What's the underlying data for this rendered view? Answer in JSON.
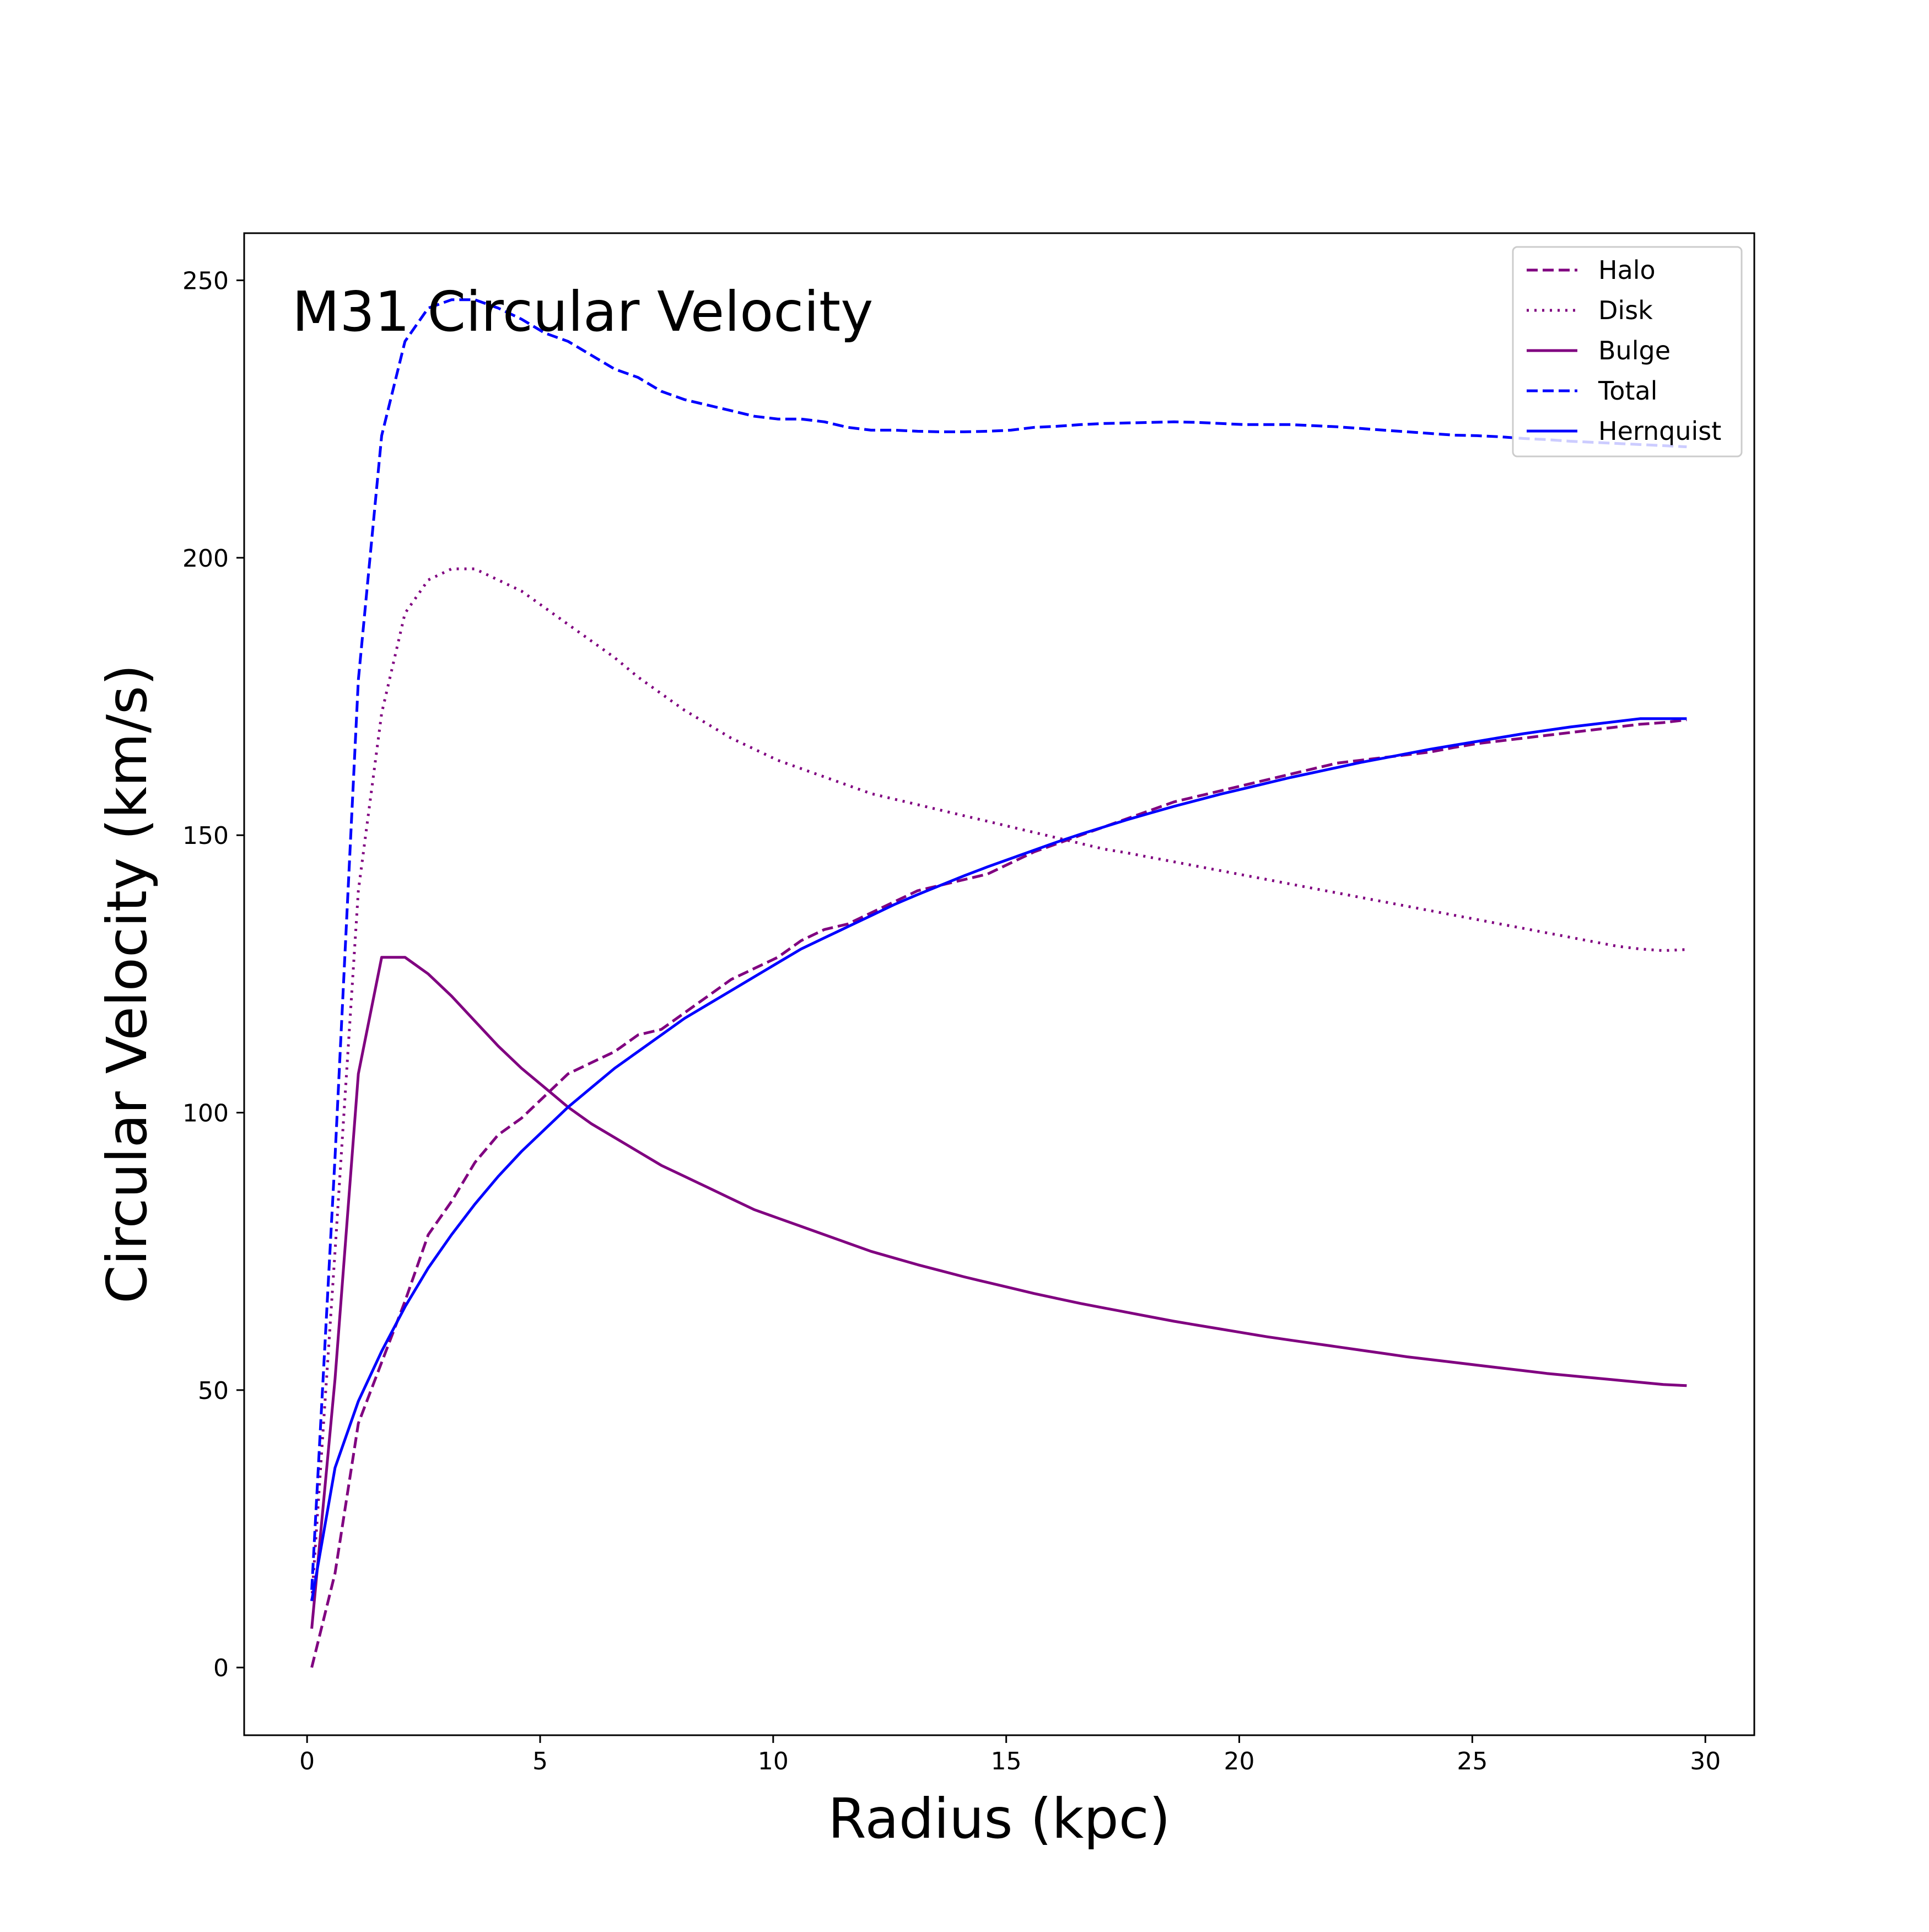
{
  "chart_data": {
    "type": "line",
    "title": "M31 Circular Velocity",
    "xlabel": "Radius (kpc)",
    "ylabel": "Circular Velocity (km/s)",
    "xlim": [
      -1.35,
      31.05
    ],
    "ylim": [
      -12.2,
      258.5
    ],
    "xticks": [
      0,
      5,
      10,
      15,
      20,
      25,
      30
    ],
    "yticks": [
      0,
      50,
      100,
      150,
      200,
      250
    ],
    "grid": false,
    "legend_position": "top-right",
    "series": [
      {
        "name": "Halo",
        "color": "#800080",
        "style": "dashed",
        "x": [
          0.1,
          0.6,
          1.1,
          1.6,
          2.1,
          2.6,
          3.1,
          3.6,
          4.1,
          4.6,
          5.1,
          5.6,
          6.1,
          6.6,
          7.1,
          7.6,
          8.1,
          8.6,
          9.1,
          9.6,
          10.1,
          10.6,
          11.1,
          11.6,
          12.1,
          12.6,
          13.1,
          13.6,
          14.1,
          14.6,
          15.1,
          15.6,
          16.1,
          16.6,
          17.1,
          17.6,
          18.1,
          18.6,
          19.1,
          19.6,
          20.1,
          20.6,
          21.1,
          21.6,
          22.1,
          22.6,
          23.1,
          23.6,
          24.1,
          24.6,
          25.1,
          25.6,
          26.1,
          26.6,
          27.1,
          27.6,
          28.1,
          28.6,
          29.1,
          29.6
        ],
        "values": [
          0,
          17,
          44,
          55,
          66,
          78,
          84,
          91,
          96,
          99,
          103,
          107,
          109,
          111,
          114,
          115,
          118,
          121,
          124,
          126,
          128,
          131,
          133,
          134,
          136,
          138,
          140,
          141,
          142,
          143,
          145,
          147,
          148.5,
          150,
          151.5,
          153,
          154.5,
          156,
          157,
          158,
          159,
          160,
          161,
          162,
          163,
          163.5,
          164,
          164.5,
          165,
          165.8,
          166.5,
          167,
          167.5,
          168,
          168.5,
          169,
          169.5,
          170,
          170.3,
          170.8
        ]
      },
      {
        "name": "Disk",
        "color": "#800080",
        "style": "dotted",
        "x": [
          0.1,
          0.6,
          1.1,
          1.6,
          2.1,
          2.6,
          3.1,
          3.6,
          4.1,
          4.6,
          5.1,
          5.6,
          6.1,
          6.6,
          7.1,
          7.6,
          8.1,
          8.6,
          9.1,
          9.6,
          10.1,
          10.6,
          11.1,
          11.6,
          12.1,
          12.6,
          13.1,
          13.6,
          14.1,
          14.6,
          15.1,
          15.6,
          16.1,
          16.6,
          17.1,
          17.6,
          18.1,
          18.6,
          19.1,
          19.6,
          20.1,
          20.6,
          21.1,
          21.6,
          22.1,
          22.6,
          23.1,
          23.6,
          24.1,
          24.6,
          25.1,
          25.6,
          26.1,
          26.6,
          27.1,
          27.6,
          28.1,
          28.6,
          29.1,
          29.6
        ],
        "values": [
          12,
          75,
          140,
          172,
          190,
          196,
          198,
          198,
          196,
          194,
          191,
          188,
          185,
          182,
          178.5,
          175.5,
          172.5,
          170,
          167.5,
          165.5,
          163.5,
          162,
          160.5,
          159,
          157.5,
          156.5,
          155.5,
          154.5,
          153.5,
          152.5,
          151.5,
          150.5,
          149.5,
          148.5,
          147.5,
          146.8,
          146,
          145.2,
          144.4,
          143.6,
          142.8,
          142,
          141.2,
          140.4,
          139.6,
          138.8,
          138,
          137.2,
          136.4,
          135.6,
          134.8,
          134,
          133.2,
          132.4,
          131.6,
          130.8,
          130,
          129.5,
          129.2,
          129.4
        ]
      },
      {
        "name": "Bulge",
        "color": "#800080",
        "style": "solid",
        "x": [
          0.1,
          0.6,
          1.1,
          1.6,
          2.1,
          2.6,
          3.1,
          3.6,
          4.1,
          4.6,
          5.1,
          5.6,
          6.1,
          6.6,
          7.1,
          7.6,
          8.1,
          8.6,
          9.1,
          9.6,
          10.1,
          10.6,
          11.1,
          11.6,
          12.1,
          12.6,
          13.1,
          13.6,
          14.1,
          14.6,
          15.1,
          15.6,
          16.1,
          16.6,
          17.1,
          17.6,
          18.1,
          18.6,
          19.1,
          19.6,
          20.1,
          20.6,
          21.1,
          21.6,
          22.1,
          22.6,
          23.1,
          23.6,
          24.1,
          24.6,
          25.1,
          25.6,
          26.1,
          26.6,
          27.1,
          27.6,
          28.1,
          28.6,
          29.1,
          29.6
        ],
        "values": [
          7,
          52,
          107,
          128,
          128,
          125,
          121,
          116.5,
          112,
          108,
          104.5,
          101,
          98,
          95.5,
          93,
          90.5,
          88.5,
          86.5,
          84.5,
          82.5,
          81,
          79.5,
          78,
          76.5,
          75,
          73.8,
          72.6,
          71.5,
          70.4,
          69.4,
          68.4,
          67.4,
          66.5,
          65.6,
          64.8,
          64,
          63.2,
          62.4,
          61.7,
          61,
          60.3,
          59.6,
          59,
          58.4,
          57.8,
          57.2,
          56.6,
          56,
          55.5,
          55,
          54.5,
          54,
          53.5,
          53,
          52.6,
          52.2,
          51.8,
          51.4,
          51,
          50.8
        ]
      },
      {
        "name": "Total",
        "color": "#0000ff",
        "style": "dashed",
        "x": [
          0.1,
          0.6,
          1.1,
          1.6,
          2.1,
          2.6,
          3.1,
          3.6,
          4.1,
          4.6,
          5.1,
          5.6,
          6.1,
          6.6,
          7.1,
          7.6,
          8.1,
          8.6,
          9.1,
          9.6,
          10.1,
          10.6,
          11.1,
          11.6,
          12.1,
          12.6,
          13.1,
          13.6,
          14.1,
          14.6,
          15.1,
          15.6,
          16.1,
          16.6,
          17.1,
          17.6,
          18.1,
          18.6,
          19.1,
          19.6,
          20.1,
          20.6,
          21.1,
          21.6,
          22.1,
          22.6,
          23.1,
          23.6,
          24.1,
          24.6,
          25.1,
          25.6,
          26.1,
          26.6,
          27.1,
          27.6,
          28.1,
          28.6,
          29.1,
          29.6
        ],
        "values": [
          14,
          92,
          178,
          222,
          239,
          245,
          246.5,
          246.5,
          245,
          243,
          240.5,
          239,
          236.5,
          234,
          232.5,
          230,
          228.5,
          227.5,
          226.5,
          225.5,
          225,
          225,
          224.5,
          223.5,
          223,
          223,
          222.8,
          222.7,
          222.7,
          222.8,
          223,
          223.5,
          223.7,
          224,
          224.2,
          224.3,
          224.4,
          224.5,
          224.4,
          224.2,
          224,
          224,
          224,
          223.8,
          223.6,
          223.3,
          223,
          222.7,
          222.4,
          222.1,
          222,
          221.8,
          221.5,
          221.3,
          221,
          220.8,
          220.6,
          220.4,
          220.2,
          220
        ]
      },
      {
        "name": "Hernquist",
        "color": "#0000ff",
        "style": "solid",
        "x": [
          0.1,
          0.6,
          1.1,
          1.6,
          2.1,
          2.6,
          3.1,
          3.6,
          4.1,
          4.6,
          5.1,
          5.6,
          6.1,
          6.6,
          7.1,
          7.6,
          8.1,
          8.6,
          9.1,
          9.6,
          10.1,
          10.6,
          11.1,
          11.6,
          12.1,
          12.6,
          13.1,
          13.6,
          14.1,
          14.6,
          15.1,
          15.6,
          16.1,
          16.6,
          17.1,
          17.6,
          18.1,
          18.6,
          19.1,
          19.6,
          20.1,
          20.6,
          21.1,
          21.6,
          22.1,
          22.6,
          23.1,
          23.6,
          24.1,
          24.6,
          25.1,
          25.6,
          26.1,
          26.6,
          27.1,
          27.6,
          28.1,
          28.6,
          29.1,
          29.6
        ],
        "values": [
          12,
          36,
          48,
          57,
          65,
          72,
          78,
          83.5,
          88.5,
          93,
          97,
          101,
          104.5,
          108,
          111,
          114,
          117,
          119.5,
          122,
          124.5,
          127,
          129.5,
          131.5,
          133.5,
          135.5,
          137.5,
          139.3,
          141,
          142.7,
          144.3,
          145.8,
          147.3,
          148.8,
          150.2,
          151.5,
          152.8,
          154,
          155.2,
          156.3,
          157.4,
          158.4,
          159.4,
          160.4,
          161.3,
          162.2,
          163.1,
          163.9,
          164.7,
          165.5,
          166.2,
          166.9,
          167.6,
          168.3,
          168.9,
          169.5,
          170,
          170.5,
          171,
          171,
          171
        ]
      }
    ]
  }
}
